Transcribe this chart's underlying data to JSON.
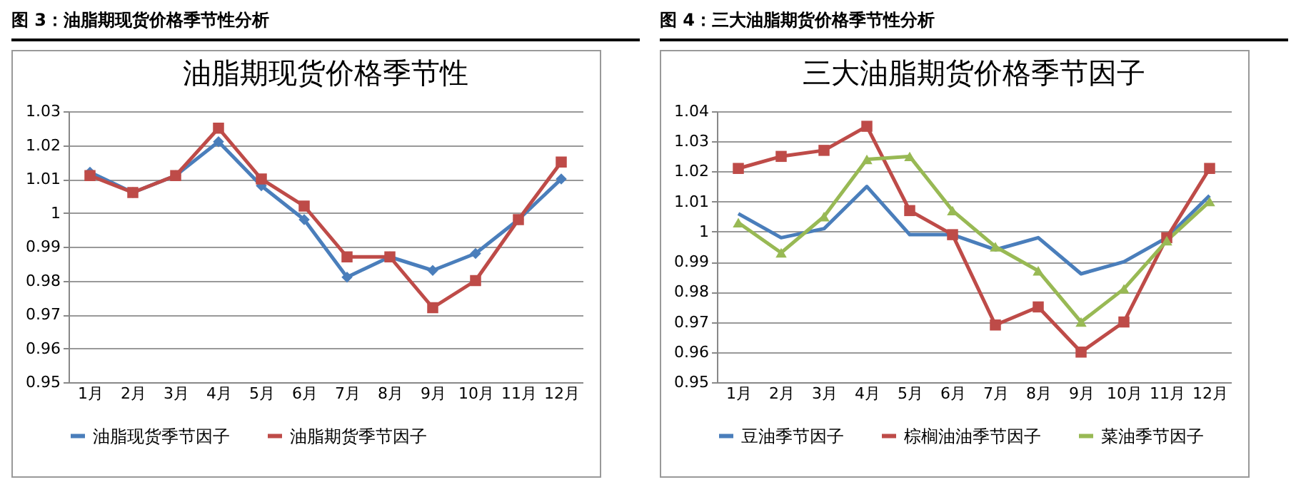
{
  "chart_data": [
    {
      "type": "line",
      "title": "图 3：油脂期现货价格季节性分析",
      "subtitle": "油脂期现货价格季节性",
      "categories": [
        "1月",
        "2月",
        "3月",
        "4月",
        "5月",
        "6月",
        "7月",
        "8月",
        "9月",
        "10月",
        "11月",
        "12月"
      ],
      "series": [
        {
          "name": "油脂现货季节因子",
          "color": "#4a7ebb",
          "marker": "diamond",
          "values": [
            1.012,
            1.006,
            1.011,
            1.021,
            1.008,
            0.998,
            0.981,
            0.987,
            0.983,
            0.988,
            0.998,
            1.01
          ]
        },
        {
          "name": "油脂期货季节因子",
          "color": "#be4b48",
          "marker": "square",
          "values": [
            1.011,
            1.006,
            1.011,
            1.025,
            1.01,
            1.002,
            0.987,
            0.987,
            0.972,
            0.98,
            0.998,
            1.015
          ]
        }
      ],
      "ylim": [
        0.95,
        1.03
      ],
      "yticks": [
        0.95,
        0.96,
        0.97,
        0.98,
        0.99,
        1,
        1.01,
        1.02,
        1.03
      ],
      "grid": "y",
      "legend": "bottom"
    },
    {
      "type": "line",
      "title": "图 4：三大油脂期货价格季节性分析",
      "subtitle": "三大油脂期货价格季节因子",
      "categories": [
        "1月",
        "2月",
        "3月",
        "4月",
        "5月",
        "6月",
        "7月",
        "8月",
        "9月",
        "10月",
        "11月",
        "12月"
      ],
      "series": [
        {
          "name": "豆油季节因子",
          "color": "#4a7ebb",
          "marker": "none",
          "values": [
            1.006,
            0.998,
            1.001,
            1.015,
            0.999,
            0.999,
            0.994,
            0.998,
            0.986,
            0.99,
            0.998,
            1.012
          ]
        },
        {
          "name": "棕榈油油季节因子",
          "color": "#be4b48",
          "marker": "square",
          "values": [
            1.021,
            1.025,
            1.027,
            1.035,
            1.007,
            0.999,
            0.969,
            0.975,
            0.96,
            0.97,
            0.998,
            1.021
          ]
        },
        {
          "name": "菜油季节因子",
          "color": "#98b954",
          "marker": "triangle",
          "values": [
            1.003,
            0.993,
            1.005,
            1.024,
            1.025,
            1.007,
            0.995,
            0.987,
            0.97,
            0.981,
            0.997,
            1.01
          ]
        }
      ],
      "ylim": [
        0.95,
        1.04
      ],
      "yticks": [
        0.95,
        0.96,
        0.97,
        0.98,
        0.99,
        1,
        1.01,
        1.02,
        1.03,
        1.04
      ],
      "grid": "y",
      "legend": "bottom"
    }
  ]
}
